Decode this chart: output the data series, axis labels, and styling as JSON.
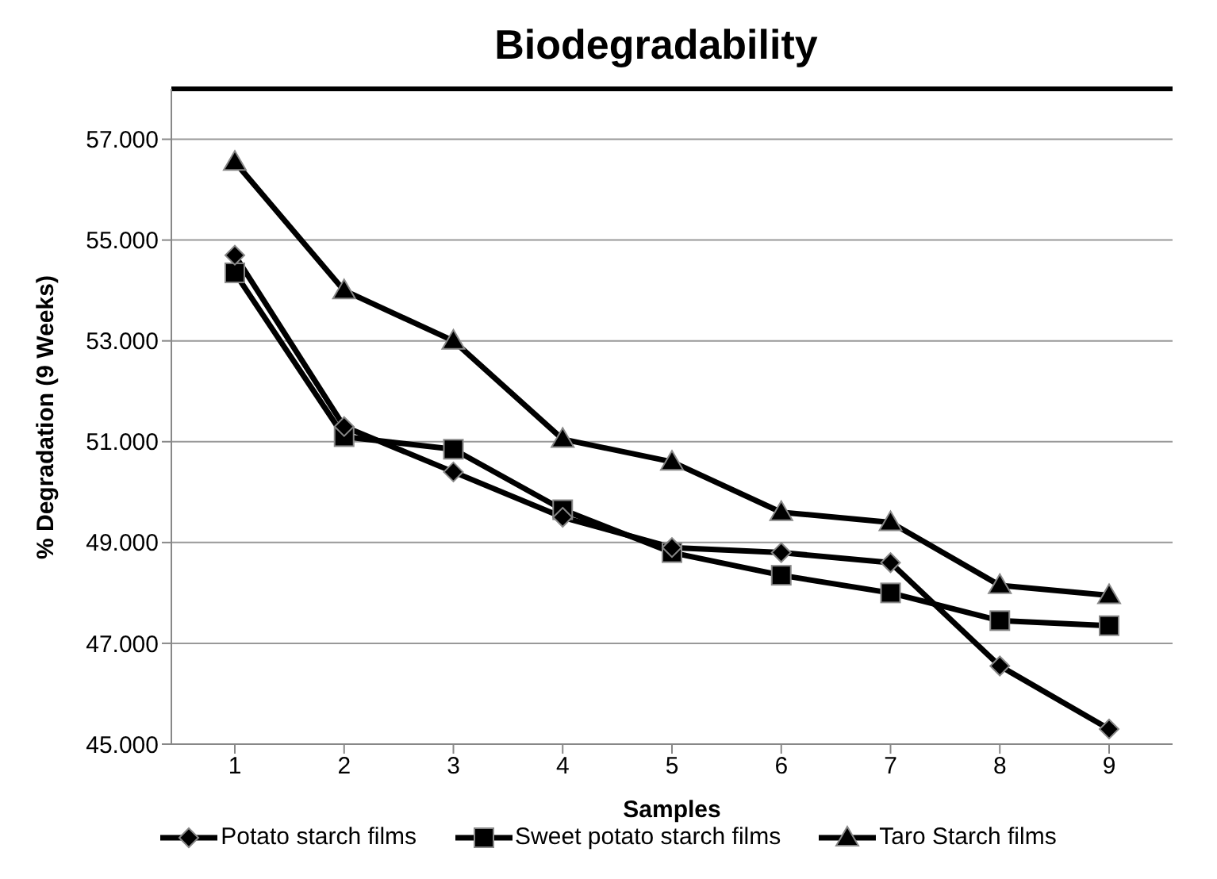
{
  "chart_data": {
    "type": "line",
    "title": "Biodegradability",
    "xlabel": "Samples",
    "ylabel": "% Degradation (9 Weeks)",
    "categories": [
      "1",
      "2",
      "3",
      "4",
      "5",
      "6",
      "7",
      "8",
      "9"
    ],
    "series": [
      {
        "name": "Potato starch films",
        "color": "#000000",
        "marker": "diamond",
        "values": [
          54.7,
          51.3,
          50.4,
          49.5,
          48.9,
          48.8,
          48.6,
          46.55,
          45.3
        ]
      },
      {
        "name": "Sweet potato starch films",
        "color": "#000000",
        "marker": "square",
        "values": [
          54.35,
          51.1,
          50.85,
          49.65,
          48.8,
          48.35,
          48.0,
          47.45,
          47.35
        ]
      },
      {
        "name": "Taro Starch films",
        "color": "#000000",
        "marker": "triangle",
        "values": [
          56.55,
          54.0,
          53.0,
          51.05,
          50.6,
          49.6,
          49.4,
          48.15,
          47.95
        ]
      }
    ],
    "ylim": [
      45,
      58
    ],
    "yticks": [
      {
        "value": 45,
        "label": "45.000"
      },
      {
        "value": 47,
        "label": "47.000"
      },
      {
        "value": 49,
        "label": "49.000"
      },
      {
        "value": 51,
        "label": "51.000"
      },
      {
        "value": 53,
        "label": "53.000"
      },
      {
        "value": 55,
        "label": "55.000"
      },
      {
        "value": 57,
        "label": "57.000"
      }
    ],
    "grid": "y",
    "legend": "bottom",
    "line_style": "solid"
  }
}
